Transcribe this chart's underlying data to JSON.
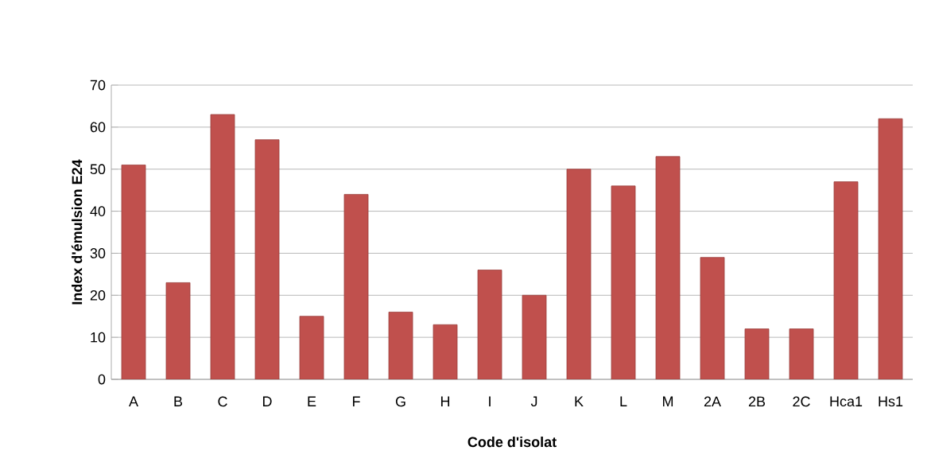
{
  "chart_data": {
    "type": "bar",
    "xlabel": "Code d'isolat",
    "ylabel": "Index d'émulsion E24",
    "categories": [
      "A",
      "B",
      "C",
      "D",
      "E",
      "F",
      "G",
      "H",
      "I",
      "J",
      "K",
      "L",
      "M",
      "2A",
      "2B",
      "2C",
      "Hca1",
      "Hs1"
    ],
    "values": [
      51,
      23,
      63,
      57,
      15,
      44,
      16,
      13,
      26,
      20,
      50,
      46,
      53,
      29,
      12,
      12,
      47,
      62
    ],
    "color": "#c0504d",
    "ylim": [
      0,
      70
    ],
    "yticks": [
      0,
      10,
      20,
      30,
      40,
      50,
      60,
      70
    ],
    "grid": "y"
  }
}
